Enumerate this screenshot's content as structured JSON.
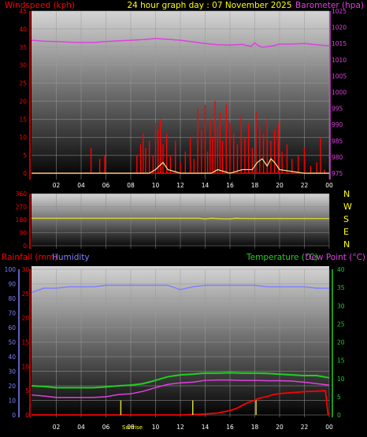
{
  "header": {
    "left": "Windspeed (kph)",
    "center": "24 hour graph day : 07 November 2025",
    "right": "Barometer (hpa)"
  },
  "compass": [
    "N",
    "W",
    "S",
    "E",
    "N"
  ],
  "bottom_header": {
    "rainfall": "Rainfall (mm)",
    "humidity": "Humidity",
    "temperature": "Temperature (°C)",
    "dewpoint": "Dew Point (°C)"
  },
  "sunrise_label": "Sunrise",
  "colors": {
    "windspeed": "#ff0000",
    "gust_highlight": "#f0f090",
    "barometer": "#e040e0",
    "direction": "#d8d830",
    "humidity": "#8080ff",
    "temperature": "#20d020",
    "dewpoint": "#e040e0",
    "rainfall": "#ff0000",
    "sun_marker": "#d8d830",
    "title": "#ffff00"
  },
  "chart_data": [
    {
      "type": "line",
      "title": "24 hour graph day : 07 November 2025",
      "xticks": [
        "02",
        "04",
        "06",
        "08",
        "10",
        "12",
        "14",
        "16",
        "18",
        "20",
        "22",
        "00"
      ],
      "x_range_hours": [
        0,
        24
      ],
      "y_left": {
        "label": "Windspeed (kph)",
        "range": [
          0,
          45
        ],
        "ticks": [
          0,
          5,
          10,
          15,
          20,
          25,
          30,
          35,
          40,
          45
        ]
      },
      "y_right": {
        "label": "Barometer (hpa)",
        "range": [
          975,
          1025
        ],
        "ticks": [
          975,
          980,
          985,
          990,
          995,
          1000,
          1005,
          1010,
          1015,
          1020,
          1025
        ]
      },
      "series": [
        {
          "name": "Barometer (hpa)",
          "axis": "right",
          "x": [
            0,
            1,
            2,
            3,
            4,
            5,
            6,
            7,
            8,
            9,
            10,
            11,
            12,
            13,
            14,
            15,
            16,
            17,
            17.7,
            18,
            18.3,
            18.6,
            19,
            19.5,
            20,
            21,
            22,
            23,
            24
          ],
          "values": [
            1016.0,
            1015.7,
            1015.6,
            1015.4,
            1015.3,
            1015.3,
            1015.6,
            1015.8,
            1016.0,
            1016.2,
            1016.5,
            1016.3,
            1016.0,
            1015.5,
            1015.0,
            1014.6,
            1014.5,
            1014.7,
            1014.1,
            1015.2,
            1014.3,
            1013.8,
            1014.0,
            1014.3,
            1014.8,
            1014.8,
            1015.0,
            1014.6,
            1014.3
          ]
        },
        {
          "name": "Windspeed (kph)",
          "axis": "left",
          "style": "spikes",
          "x": [
            0,
            2,
            3,
            4,
            4.8,
            5.2,
            5.5,
            5.9,
            6.1,
            7,
            8,
            8.5,
            8.8,
            9.0,
            9.2,
            9.5,
            9.8,
            10.0,
            10.2,
            10.4,
            10.6,
            10.9,
            11.2,
            11.6,
            12.0,
            12.4,
            12.8,
            13.1,
            13.4,
            13.7,
            14.0,
            14.2,
            14.4,
            14.6,
            14.8,
            15.0,
            15.2,
            15.4,
            15.7,
            16.0,
            16.3,
            16.6,
            16.9,
            17.2,
            17.5,
            17.8,
            18.1,
            18.4,
            18.7,
            19.0,
            19.3,
            19.6,
            19.9,
            20.2,
            20.6,
            21.0,
            21.5,
            22.0,
            22.5,
            23.0,
            23.3,
            23.6,
            24
          ],
          "values": [
            0,
            0,
            0,
            0,
            7,
            0,
            4,
            5,
            0,
            0,
            0,
            5,
            8,
            11,
            7,
            9,
            5,
            14,
            12,
            15,
            8,
            11,
            5,
            9,
            3,
            6,
            10,
            4,
            18,
            12,
            19,
            6,
            15,
            10,
            20,
            13,
            17,
            9,
            19,
            14,
            11,
            8,
            16,
            10,
            14,
            7,
            17,
            13,
            11,
            15,
            9,
            12,
            14,
            6,
            8,
            4,
            5,
            7,
            2,
            3,
            10,
            1,
            0
          ]
        },
        {
          "name": "Gust highlight",
          "axis": "left",
          "x": [
            0,
            6,
            9.5,
            10.0,
            10.3,
            10.6,
            11,
            12,
            14.5,
            15,
            16,
            17,
            17.8,
            18.2,
            18.6,
            19.0,
            19.3,
            19.6,
            20,
            22,
            24
          ],
          "values": [
            0,
            0,
            0,
            1,
            2,
            3,
            1,
            0,
            0,
            1,
            0,
            1,
            1,
            3,
            4,
            2,
            4,
            3,
            1,
            0,
            0
          ]
        }
      ]
    },
    {
      "type": "line",
      "title": "",
      "y_left": {
        "label": "",
        "range": [
          0,
          360
        ],
        "ticks": [
          0,
          90,
          180,
          270,
          360
        ]
      },
      "series": [
        {
          "name": "Wind direction",
          "axis": "left",
          "x": [
            0,
            4,
            8,
            12,
            13.5,
            14,
            14.5,
            15.5,
            16,
            16.5,
            17,
            18,
            19,
            20,
            22,
            24
          ],
          "values": [
            190,
            190,
            190,
            190,
            190,
            186,
            190,
            186,
            186,
            190,
            188,
            188,
            188,
            188,
            188,
            188
          ]
        }
      ]
    },
    {
      "type": "line",
      "title": "",
      "xticks": [
        "02",
        "04",
        "06",
        "08",
        "10",
        "12",
        "14",
        "16",
        "18",
        "20",
        "22",
        "00"
      ],
      "x_range_hours": [
        0,
        24
      ],
      "y_left_outer": {
        "label": "Humidity",
        "range": [
          0,
          100
        ],
        "ticks": [
          0,
          10,
          20,
          30,
          40,
          50,
          60,
          70,
          80,
          90,
          100
        ]
      },
      "y_left_inner": {
        "label": "Rainfall (mm)",
        "range": [
          0,
          30
        ],
        "ticks": [
          0,
          5,
          10,
          15,
          20,
          25,
          30
        ]
      },
      "y_right": {
        "label": "Temperature (°C) / Dew Point (°C)",
        "range": [
          0,
          40
        ],
        "ticks": [
          0,
          5,
          10,
          15,
          20,
          25,
          30,
          35,
          40
        ]
      },
      "series": [
        {
          "name": "Humidity",
          "axis": "left_outer",
          "x": [
            0,
            1,
            2,
            3,
            4,
            5,
            6,
            7,
            8,
            9,
            10,
            11,
            12,
            13,
            14,
            15,
            16,
            17,
            18,
            19,
            20,
            21,
            22,
            23,
            24
          ],
          "values": [
            84,
            87,
            87,
            88,
            88,
            88,
            89,
            89,
            89,
            89,
            89,
            89,
            86,
            88,
            89,
            89,
            89,
            89,
            89,
            88,
            88,
            88,
            88,
            87,
            87
          ]
        },
        {
          "name": "Temperature (°C)",
          "axis": "right",
          "x": [
            0,
            1,
            2,
            3,
            4,
            5,
            6,
            7,
            8,
            9,
            10,
            11,
            12,
            13,
            14,
            15,
            16,
            17,
            18,
            19,
            20,
            21,
            22,
            23,
            24
          ],
          "values": [
            8.0,
            7.8,
            7.5,
            7.5,
            7.5,
            7.5,
            7.7,
            8.0,
            8.2,
            8.6,
            9.5,
            10.5,
            11.0,
            11.2,
            11.5,
            11.5,
            11.6,
            11.5,
            11.5,
            11.4,
            11.2,
            11.0,
            10.8,
            10.8,
            10.2
          ]
        },
        {
          "name": "Dew Point (°C)",
          "axis": "right",
          "x": [
            0,
            1,
            2,
            3,
            4,
            5,
            6,
            7,
            8,
            9,
            10,
            11,
            12,
            13,
            14,
            15,
            16,
            17,
            18,
            19,
            20,
            21,
            22,
            23,
            24
          ],
          "values": [
            5.5,
            5.2,
            4.8,
            4.8,
            4.8,
            4.8,
            5.0,
            5.6,
            5.8,
            6.5,
            7.5,
            8.4,
            8.8,
            9.0,
            9.5,
            9.6,
            9.6,
            9.5,
            9.5,
            9.4,
            9.4,
            9.3,
            9.0,
            8.6,
            8.2
          ]
        },
        {
          "name": "Rainfall (mm)",
          "axis": "left_inner",
          "x": [
            0,
            10,
            12,
            13,
            14,
            15,
            15.8,
            16.5,
            17,
            17.5,
            18,
            18.3,
            19,
            19.5,
            20,
            21,
            22,
            23,
            23.7,
            23.9,
            24
          ],
          "values": [
            0,
            0,
            0,
            0.1,
            0.2,
            0.4,
            0.8,
            1.3,
            2.0,
            2.6,
            3.0,
            3.4,
            3.8,
            4.2,
            4.4,
            4.6,
            4.8,
            4.9,
            5.0,
            0.2,
            0
          ]
        }
      ],
      "markers": [
        {
          "name": "Sunrise marker",
          "x": 7.2,
          "height_value": 10
        },
        {
          "name": "Midday marker",
          "x": 13.0,
          "height_value": 10
        },
        {
          "name": "Sunset marker",
          "x": 18.1,
          "height_value": 10
        }
      ]
    }
  ]
}
